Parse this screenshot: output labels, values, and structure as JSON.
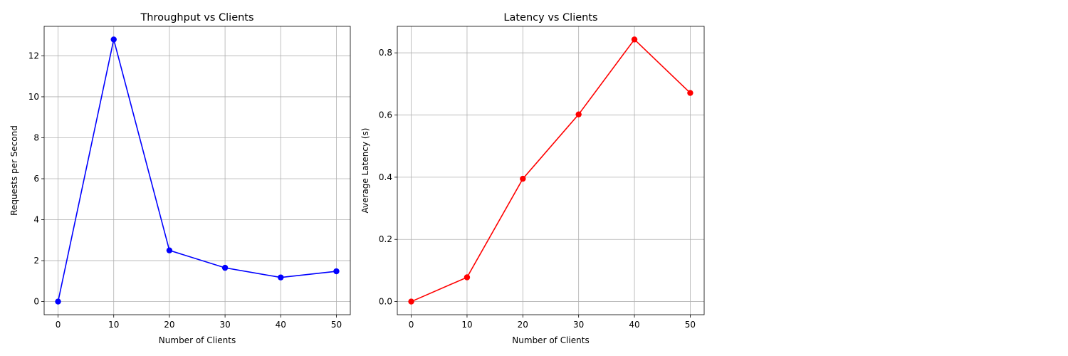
{
  "chart_data": [
    {
      "type": "line",
      "title": "Throughput vs Clients",
      "xlabel": "Number of Clients",
      "ylabel": "Requests per Second",
      "x": [
        0,
        10,
        20,
        30,
        40,
        50
      ],
      "series": [
        {
          "values": [
            0,
            12.8,
            2.5,
            1.65,
            1.18,
            1.48
          ],
          "color": "#0000ff",
          "marker": "circle"
        }
      ],
      "xlim": [
        -2.5,
        52.5
      ],
      "ylim": [
        -0.64,
        13.44
      ],
      "xticks": [
        0,
        10,
        20,
        30,
        40,
        50
      ],
      "yticks": [
        0,
        2,
        4,
        6,
        8,
        10,
        12
      ],
      "ytick_labels": [
        "0",
        "2",
        "4",
        "6",
        "8",
        "10",
        "12"
      ],
      "grid": true
    },
    {
      "type": "line",
      "title": "Latency vs Clients",
      "xlabel": "Number of Clients",
      "ylabel": "Average Latency (s)",
      "x": [
        0,
        10,
        20,
        30,
        40,
        50
      ],
      "series": [
        {
          "values": [
            0,
            0.078,
            0.395,
            0.602,
            0.843,
            0.671
          ],
          "color": "#ff0000",
          "marker": "circle"
        }
      ],
      "xlim": [
        -2.5,
        52.5
      ],
      "ylim": [
        -0.0422,
        0.8852
      ],
      "xticks": [
        0,
        10,
        20,
        30,
        40,
        50
      ],
      "yticks": [
        0,
        0.2,
        0.4,
        0.6,
        0.8
      ],
      "ytick_labels": [
        "0.0",
        "0.2",
        "0.4",
        "0.6",
        "0.8"
      ],
      "grid": true
    }
  ]
}
